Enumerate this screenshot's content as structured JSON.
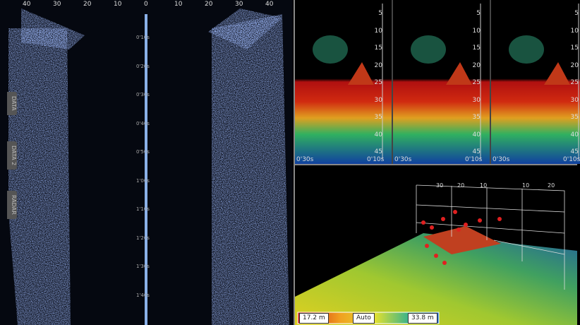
{
  "sidescan": {
    "range_labels": [
      "40",
      "30",
      "20",
      "10",
      "0",
      "10",
      "20",
      "30",
      "40"
    ],
    "time_labels": [
      "0'10s",
      "0'20s",
      "0'30s",
      "0'40s",
      "0'50s",
      "1'00s",
      "1'10s",
      "1'20s",
      "1'30s",
      "1'40s"
    ]
  },
  "side_tabs": [
    "DATA",
    "DATA 2",
    "RADAR"
  ],
  "history_panels": [
    {
      "depth_labels": [
        "5",
        "10",
        "15",
        "20",
        "25",
        "30",
        "35",
        "40",
        "45"
      ],
      "start_label": "0'30s",
      "end_label": "0'10s"
    },
    {
      "depth_labels": [
        "5",
        "10",
        "15",
        "20",
        "25",
        "30",
        "35",
        "40",
        "45"
      ],
      "start_label": "0'30s",
      "end_label": "0'10s"
    },
    {
      "depth_labels": [
        "5",
        "10",
        "15",
        "20",
        "25",
        "30",
        "35",
        "40",
        "45"
      ],
      "start_label": "0'30s",
      "end_label": "0'10s"
    }
  ],
  "view_3d": {
    "scale_labels": [
      "30",
      "20",
      "10",
      "10",
      "20"
    ],
    "legend": {
      "min": "17.2 m",
      "mode": "Auto",
      "max": "33.8 m"
    }
  }
}
